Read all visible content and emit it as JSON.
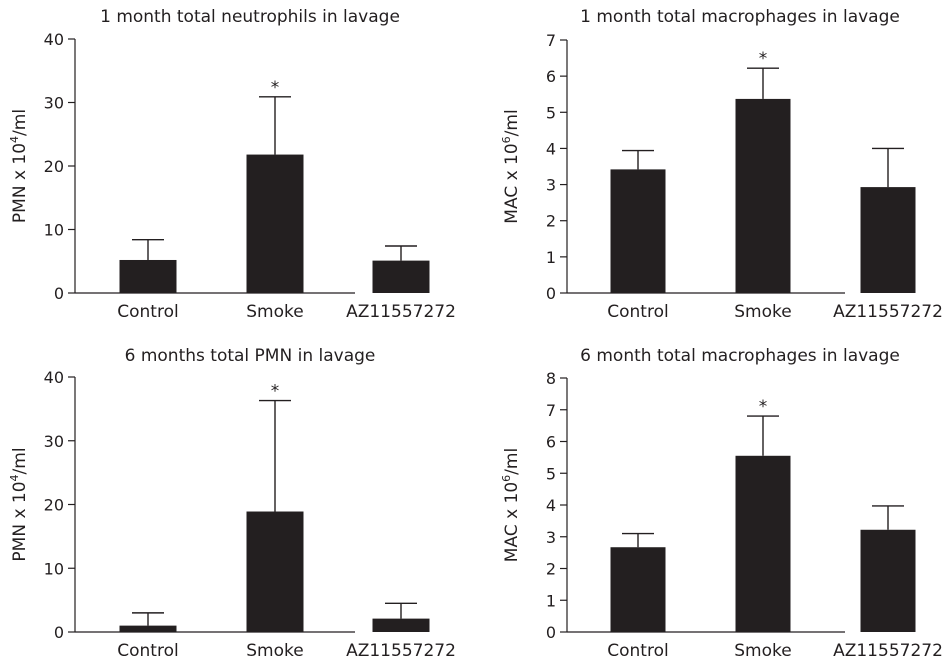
{
  "chart_data": [
    {
      "type": "bar",
      "title": "1 month total neutrophils in lavage",
      "ylabel_main": "PMN x 10",
      "ylabel_exp": "4",
      "ylabel_unit": "/ml",
      "ylim": [
        0,
        40
      ],
      "yticks": [
        "0",
        "10",
        "20",
        "30",
        "40"
      ],
      "categories": [
        "Control",
        "Smoke",
        "AZ11557272"
      ],
      "values": [
        5.2,
        21.8,
        5.1
      ],
      "errors": [
        3.2,
        9.1,
        2.3
      ],
      "significance": [
        "",
        "*",
        ""
      ],
      "bar_color": "#231f20"
    },
    {
      "type": "bar",
      "title": "1 month total macrophages in lavage",
      "ylabel_main": "MAC x 10",
      "ylabel_exp": "6",
      "ylabel_unit": "/ml",
      "ylim": [
        0,
        7
      ],
      "yticks": [
        "0",
        "1",
        "2",
        "3",
        "4",
        "5",
        "6",
        "7"
      ],
      "categories": [
        "Control",
        "Smoke",
        "AZ11557272"
      ],
      "values": [
        3.42,
        5.37,
        2.93
      ],
      "errors": [
        0.52,
        0.85,
        1.07
      ],
      "significance": [
        "",
        "*",
        ""
      ],
      "bar_color": "#231f20"
    },
    {
      "type": "bar",
      "title": "6 months total PMN in lavage",
      "ylabel_main": "PMN x 10",
      "ylabel_exp": "4",
      "ylabel_unit": "/ml",
      "ylim": [
        0,
        40
      ],
      "yticks": [
        "0",
        "10",
        "20",
        "30",
        "40"
      ],
      "categories": [
        "Control",
        "Smoke",
        "AZ11557272"
      ],
      "values": [
        1.0,
        18.9,
        2.1
      ],
      "errors": [
        2.0,
        17.4,
        2.4
      ],
      "significance": [
        "",
        "*",
        ""
      ],
      "bar_color": "#231f20"
    },
    {
      "type": "bar",
      "title": "6 month total macrophages in lavage",
      "ylabel_main": "MAC x 10",
      "ylabel_exp": "6",
      "ylabel_unit": "/ml",
      "ylim": [
        0,
        8
      ],
      "yticks": [
        "0",
        "1",
        "2",
        "3",
        "4",
        "5",
        "6",
        "7",
        "8"
      ],
      "categories": [
        "Control",
        "Smoke",
        "AZ11557272"
      ],
      "values": [
        2.67,
        5.55,
        3.22
      ],
      "errors": [
        0.43,
        1.25,
        0.75
      ],
      "significance": [
        "",
        "*",
        ""
      ],
      "bar_color": "#231f20"
    }
  ]
}
